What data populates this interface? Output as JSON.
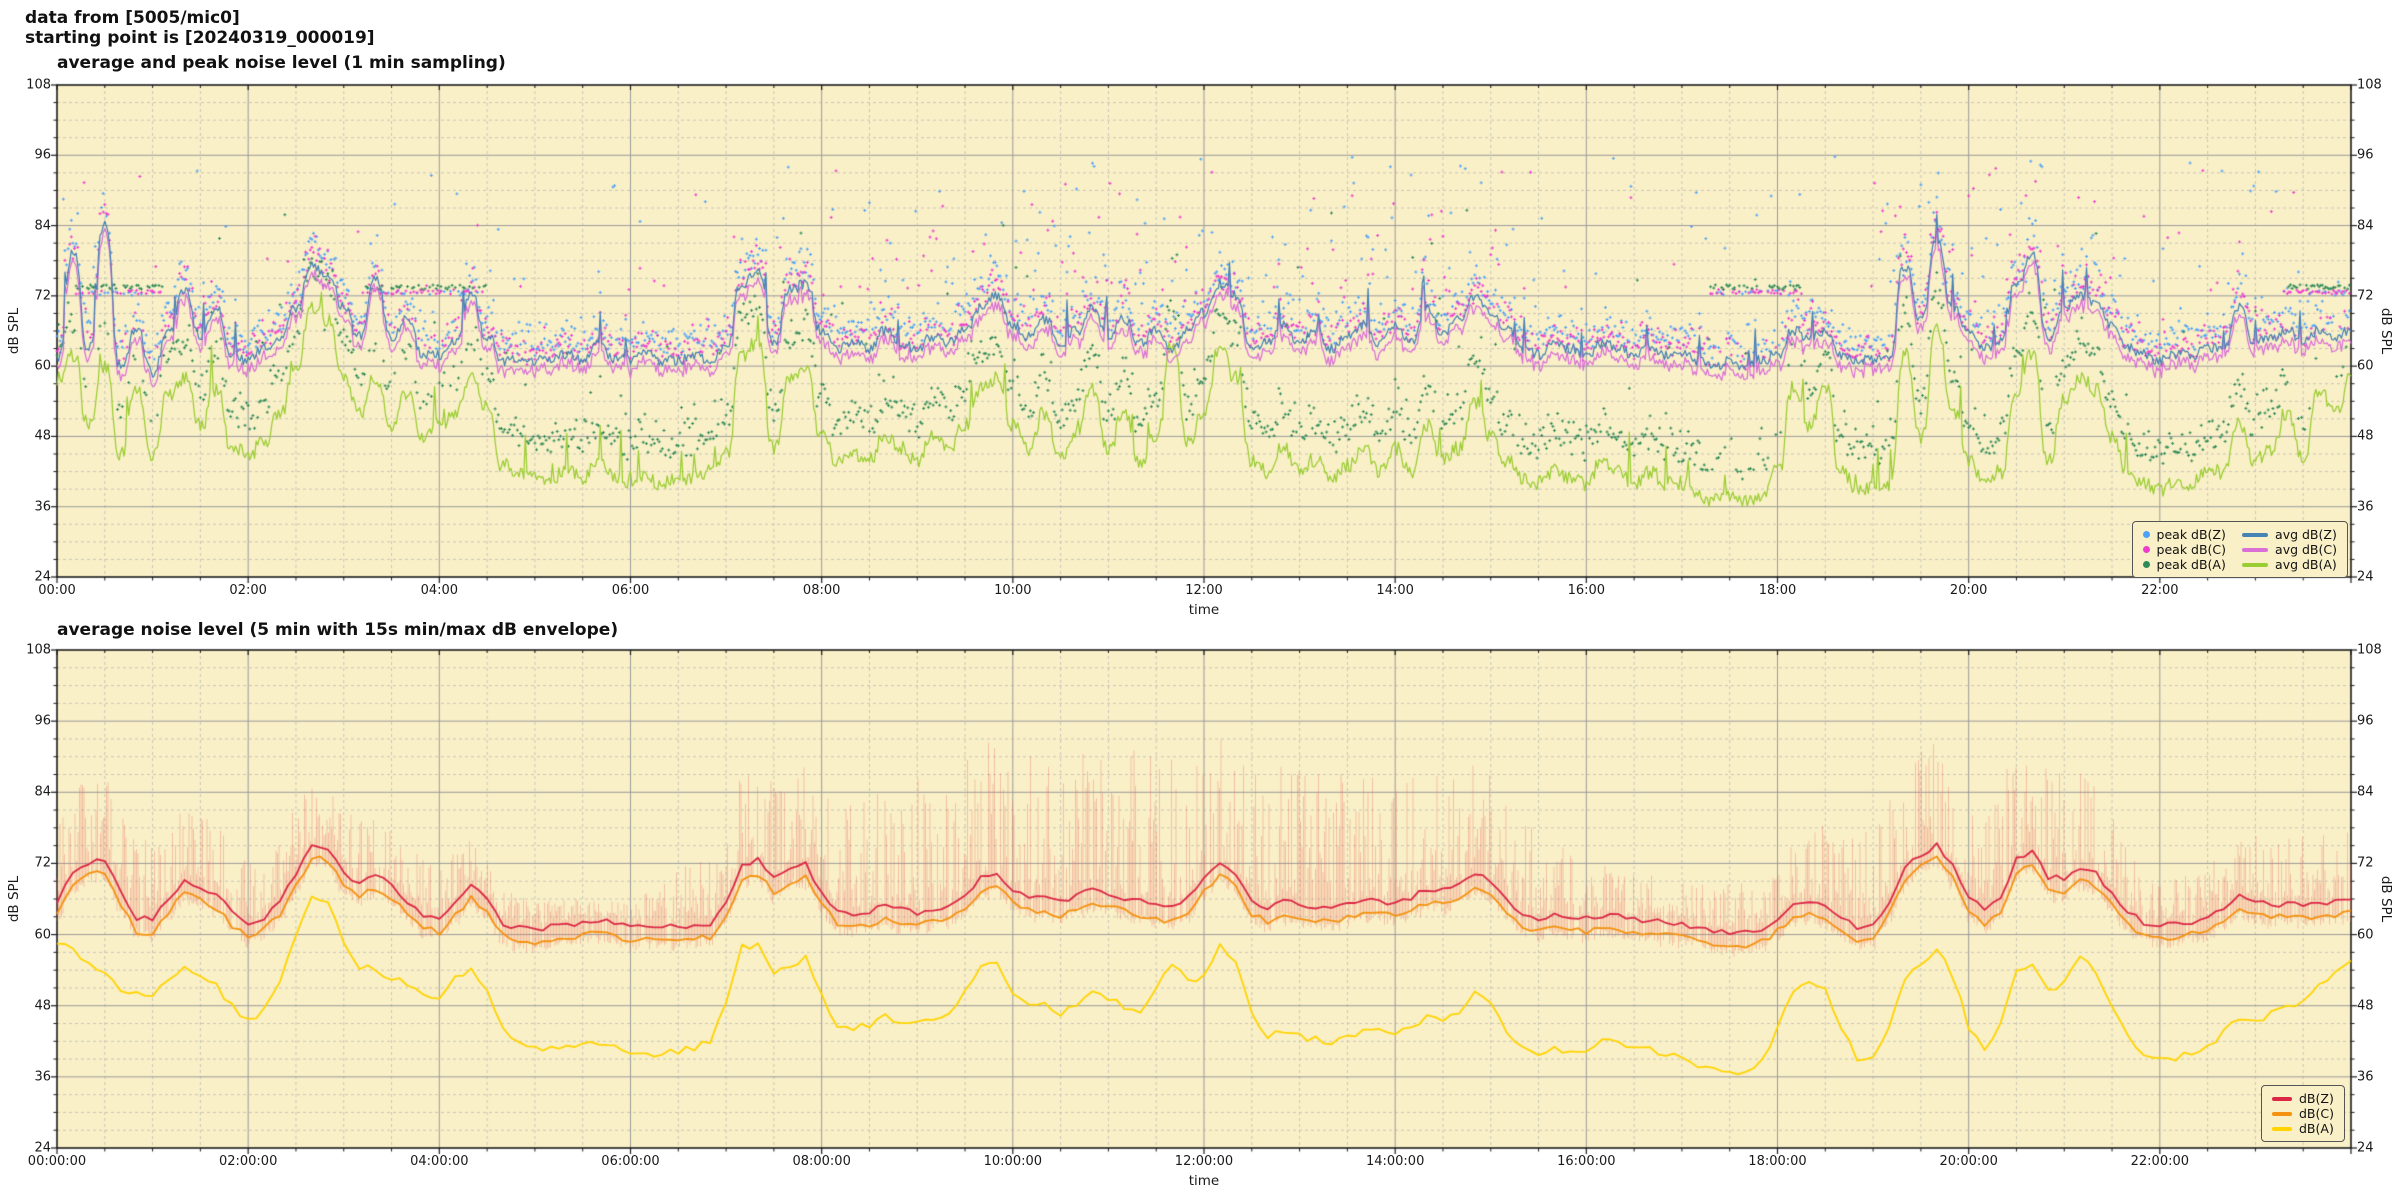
{
  "header": {
    "line1": "data from [5005/mic0]",
    "line2": "starting point is [20240319_000019]"
  },
  "style": {
    "page_bg": "#ffffff",
    "plot_bg": "#faf0c8",
    "grid_major": "#9a9a9a",
    "grid_minor": "#c6c6b8",
    "plot_border": "#1a1a1a",
    "text_color": "#111111",
    "noise_seed": 20240319
  },
  "chart_data": [
    {
      "type": "line+scatter",
      "title": "average and peak noise level (1 min sampling)",
      "xlabel": "time",
      "ylabel_left": "dB SPL",
      "ylabel_right": "dB SPL",
      "x_hours_range": [
        0,
        24
      ],
      "ylim": [
        24,
        108
      ],
      "y_major_step": 12,
      "y_minor_step": 3,
      "x_major_step_hours": 2,
      "x_minor_step_hours": 0.5,
      "grid": true,
      "legend_position": "lower right",
      "x_tick_hours": [
        0,
        2,
        4,
        6,
        8,
        10,
        12,
        14,
        16,
        18,
        20,
        22
      ],
      "x_tick_labels": [
        "00:00",
        "02:00",
        "04:00",
        "06:00",
        "08:00",
        "10:00",
        "12:00",
        "14:00",
        "16:00",
        "18:00",
        "20:00",
        "22:00"
      ],
      "y_tick_values": [
        108,
        96,
        84,
        72,
        60,
        48,
        36,
        24
      ],
      "base_step_minutes": 10,
      "series": [
        {
          "name": "avg dB(Z)",
          "color": "#4682b4",
          "line_jitter": 1.8,
          "spike_prob": 0.025,
          "spike_amp": 5,
          "values": [
            61,
            79,
            63,
            84,
            60,
            66,
            59,
            66,
            73,
            65,
            70,
            62,
            61,
            63,
            65,
            70,
            77,
            76,
            70,
            65,
            75,
            65,
            68,
            62,
            62,
            64,
            72,
            65,
            61,
            61,
            61,
            61,
            62,
            61,
            64,
            61,
            61,
            62,
            61,
            61,
            62,
            61,
            63,
            74,
            76,
            64,
            73,
            74,
            66,
            63,
            64,
            63,
            66,
            64,
            63,
            65,
            64,
            66,
            70,
            72,
            67,
            65,
            68,
            64,
            66,
            70,
            65,
            68,
            64,
            66,
            63,
            66,
            69,
            74,
            72,
            63,
            64,
            67,
            64,
            66,
            63,
            65,
            67,
            64,
            67,
            64,
            70,
            66,
            68,
            72,
            69,
            66,
            63,
            62,
            64,
            63,
            62,
            64,
            63,
            62,
            63,
            62,
            62,
            61,
            60,
            61,
            60,
            61,
            62,
            66,
            65,
            66,
            62,
            61,
            61,
            62,
            77,
            68,
            81,
            70,
            66,
            63,
            64,
            74,
            79,
            65,
            70,
            72,
            71,
            67,
            63,
            62,
            61,
            62,
            62,
            63,
            63,
            70,
            64,
            65,
            66,
            64,
            66,
            65,
            66
          ]
        },
        {
          "name": "avg dB(C)",
          "color": "#da70d6",
          "derive": {
            "from": "avg dB(Z)",
            "offset": -1.7,
            "wiggle": 1.4,
            "max_below": 0.4
          }
        },
        {
          "name": "avg dB(A)",
          "color": "#9acd32",
          "line_jitter": 2.6,
          "spike_prob": 0.03,
          "spike_amp": 6,
          "values": [
            58,
            62,
            50,
            60,
            45,
            56,
            45,
            55,
            58,
            50,
            56,
            46,
            45,
            47,
            52,
            60,
            70,
            68,
            58,
            52,
            58,
            50,
            55,
            48,
            50,
            52,
            58,
            52,
            43,
            42,
            41,
            41,
            42,
            41,
            44,
            41,
            40,
            41,
            40,
            41,
            41,
            42,
            45,
            62,
            64,
            46,
            58,
            60,
            48,
            44,
            45,
            44,
            48,
            46,
            44,
            48,
            46,
            50,
            56,
            58,
            50,
            46,
            52,
            44,
            48,
            56,
            46,
            52,
            44,
            48,
            64,
            47,
            52,
            63,
            58,
            44,
            42,
            46,
            42,
            44,
            41,
            43,
            46,
            42,
            46,
            42,
            50,
            44,
            46,
            54,
            48,
            44,
            41,
            40,
            42,
            41,
            40,
            44,
            42,
            40,
            42,
            40,
            40,
            38,
            37,
            38,
            37,
            38,
            42,
            56,
            50,
            56,
            42,
            39,
            39,
            40,
            62,
            48,
            66,
            52,
            44,
            40,
            42,
            56,
            62,
            44,
            54,
            58,
            56,
            48,
            42,
            40,
            39,
            40,
            40,
            42,
            42,
            50,
            44,
            46,
            52,
            44,
            56,
            52,
            58
          ]
        }
      ],
      "scatter": [
        {
          "name": "peak dB(Z)",
          "color": "#4da2f7",
          "above": "avg dB(Z)",
          "offset_mean": 1.4,
          "offset_spread": 2.2,
          "outlier_prob": 0.05,
          "outlier_lo": 74,
          "outlier_hi": 96,
          "busy_boost_hours": [
            [
              8,
              15.5
            ],
            [
              19,
              21.5
            ]
          ],
          "busy_extra_prob": 0.12,
          "row_value": 72.5,
          "row_prob": 0.25
        },
        {
          "name": "peak dB(C)",
          "color": "#ee3ccf",
          "above": "avg dB(C)",
          "offset_mean": 1.6,
          "offset_spread": 2.2,
          "outlier_prob": 0.05,
          "outlier_lo": 73,
          "outlier_hi": 94,
          "busy_boost_hours": [
            [
              8,
              15.5
            ],
            [
              19,
              21.5
            ]
          ],
          "busy_extra_prob": 0.12,
          "row_value": 72.7,
          "row_prob": 0.5
        },
        {
          "name": "peak dB(A)",
          "color": "#2e8b57",
          "above": "avg dB(A)",
          "offset_mean": 4.5,
          "offset_spread": 2.6,
          "outlier_prob": 0.03,
          "outlier_lo": 62,
          "outlier_hi": 88,
          "busy_boost_hours": [
            [
              8,
              15.5
            ]
          ],
          "busy_extra_prob": 0.03,
          "row_value": 73.5,
          "row_prob": 0.5
        }
      ],
      "row_intervals_hours": [
        [
          0.2,
          1.1
        ],
        [
          3.2,
          4.5
        ],
        [
          17.3,
          18.25
        ],
        [
          23.3,
          24.0
        ]
      ],
      "legend_left": [
        {
          "type": "dot",
          "color": "#4da2f7",
          "label": "peak dB(Z)"
        },
        {
          "type": "dot",
          "color": "#ee3ccf",
          "label": "peak dB(C)"
        },
        {
          "type": "dot",
          "color": "#2e8b57",
          "label": "peak dB(A)"
        }
      ],
      "legend_right": [
        {
          "type": "line",
          "color": "#4682b4",
          "label": "avg dB(Z)"
        },
        {
          "type": "line",
          "color": "#da70d6",
          "label": "avg dB(C)"
        },
        {
          "type": "line",
          "color": "#9acd32",
          "label": "avg dB(A)"
        }
      ]
    },
    {
      "type": "line+envelope",
      "title": "average noise level (5 min with 15s min/max dB envelope)",
      "xlabel": "time",
      "ylabel_left": "dB SPL",
      "ylabel_right": "dB SPL",
      "x_hours_range": [
        0,
        24
      ],
      "ylim": [
        24,
        108
      ],
      "y_major_step": 12,
      "y_minor_step": 3,
      "x_major_step_hours": 2,
      "x_minor_step_hours": 0.5,
      "grid": true,
      "legend_position": "lower right",
      "x_tick_hours": [
        0,
        2,
        4,
        6,
        8,
        10,
        12,
        14,
        16,
        18,
        20,
        22
      ],
      "x_tick_labels": [
        "00:00:00",
        "02:00:00",
        "04:00:00",
        "06:00:00",
        "08:00:00",
        "10:00:00",
        "12:00:00",
        "14:00:00",
        "16:00:00",
        "18:00:00",
        "20:00:00",
        "22:00:00"
      ],
      "y_tick_values": [
        108,
        96,
        84,
        72,
        60,
        48,
        36,
        24
      ],
      "sample_step_minutes": 5,
      "series": [
        {
          "name": "dB(Z)",
          "color": "#dc2645",
          "derive": {
            "from": "avg dB(Z)",
            "smooth": 3,
            "offset": 0
          },
          "line_jitter": 1.0
        },
        {
          "name": "dB(C)",
          "color": "#f5920f",
          "derive": {
            "from": "avg dB(Z)",
            "smooth": 3,
            "offset": -2.2
          },
          "line_jitter": 1.0
        },
        {
          "name": "dB(A)",
          "color": "#ffd400",
          "derive": {
            "from": "avg dB(A)",
            "smooth": 3,
            "offset": -0.5
          },
          "line_jitter": 1.2
        }
      ],
      "envelope": {
        "around": "dB(Z)",
        "color": "#e46e64",
        "alpha": 0.38,
        "min_drop": 3,
        "max_extra_hourly": [
          14,
          12,
          10,
          10,
          8,
          4,
          3,
          14,
          16,
          20,
          22,
          24,
          22,
          20,
          20,
          18,
          8,
          6,
          8,
          16,
          16,
          18,
          6,
          10,
          12
        ]
      },
      "legend": [
        {
          "type": "line",
          "color": "#dc2645",
          "label": "dB(Z)"
        },
        {
          "type": "line",
          "color": "#f5920f",
          "label": "dB(C)"
        },
        {
          "type": "line",
          "color": "#ffd400",
          "label": "dB(A)"
        }
      ]
    }
  ]
}
